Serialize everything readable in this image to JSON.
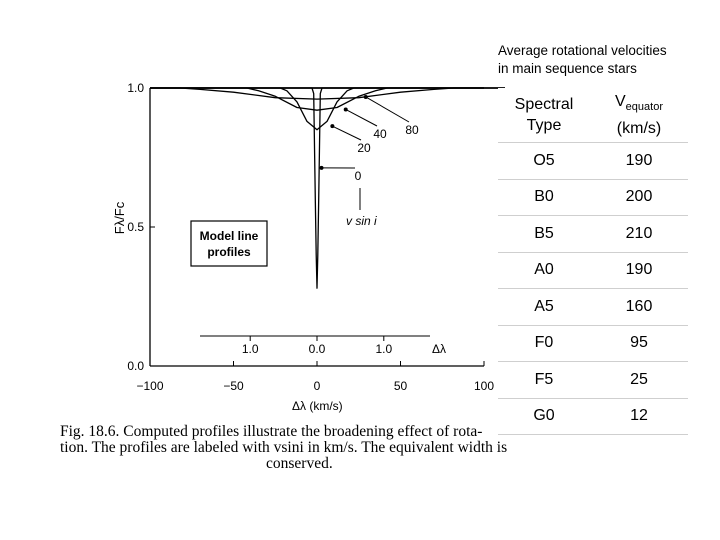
{
  "annotation": {
    "line1": "Average rotational velocities",
    "line2": "in main sequence stars"
  },
  "table": {
    "header_col1_line1": "Spectral",
    "header_col1_line2": "Type",
    "header_col2_main": "V",
    "header_col2_sub": "equator",
    "header_col2_unit": "(km/s)",
    "rows": [
      {
        "type": "O5",
        "v": "190"
      },
      {
        "type": "B0",
        "v": "200"
      },
      {
        "type": "B5",
        "v": "210"
      },
      {
        "type": "A0",
        "v": "190"
      },
      {
        "type": "A5",
        "v": "160"
      },
      {
        "type": "F0",
        "v": "95"
      },
      {
        "type": "F5",
        "v": "25"
      },
      {
        "type": "G0",
        "v": "12"
      }
    ]
  },
  "caption": {
    "line1": "Fig. 18.6.   Computed profiles illustrate the broadening effect of rota-",
    "line2": "tion. The profiles are labeled with vsini in km/s. The equivalent width is",
    "line3": "conserved."
  },
  "chart_data": {
    "type": "line",
    "title": "",
    "xlabel": "Δλ (km/s)",
    "ylabel": "Fλ/Fc",
    "xlim": [
      -100,
      100
    ],
    "ylim": [
      0,
      1
    ],
    "x_ticks": [
      "−100",
      "−50",
      "0",
      "50",
      "100"
    ],
    "y_ticks": [
      "0.0",
      "0.5",
      "1.0"
    ],
    "inner_axis": {
      "label": "Δλ",
      "ticks": [
        "1.0",
        "0.0",
        "1.0"
      ],
      "tick_positions": [
        -40,
        0,
        40
      ]
    },
    "legend_box": {
      "line1": "Model line",
      "line2": "profiles"
    },
    "series_label_title": "v sin i",
    "series": [
      {
        "name": "0",
        "vsini": 0,
        "x": [
          -100,
          -3,
          -2,
          -1,
          -0.5,
          0,
          0.5,
          1,
          2,
          3,
          100
        ],
        "y": [
          1.0,
          1.0,
          0.98,
          0.6,
          0.4,
          0.28,
          0.4,
          0.6,
          0.98,
          1.0,
          1.0
        ]
      },
      {
        "name": "20",
        "vsini": 20,
        "x": [
          -100,
          -22,
          -18,
          -12,
          -6,
          0,
          6,
          12,
          18,
          22,
          100
        ],
        "y": [
          1.0,
          1.0,
          0.99,
          0.95,
          0.88,
          0.85,
          0.88,
          0.95,
          0.99,
          1.0,
          1.0
        ]
      },
      {
        "name": "40",
        "vsini": 40,
        "x": [
          -100,
          -42,
          -35,
          -25,
          -12,
          0,
          12,
          25,
          35,
          42,
          100
        ],
        "y": [
          1.0,
          1.0,
          0.99,
          0.97,
          0.93,
          0.92,
          0.93,
          0.97,
          0.99,
          1.0,
          1.0
        ]
      },
      {
        "name": "80",
        "vsini": 80,
        "x": [
          -100,
          -82,
          -70,
          -50,
          -25,
          0,
          25,
          50,
          70,
          82,
          100
        ],
        "y": [
          1.0,
          1.0,
          0.995,
          0.985,
          0.965,
          0.96,
          0.965,
          0.985,
          0.995,
          1.0,
          1.0
        ]
      }
    ],
    "grid": false
  }
}
